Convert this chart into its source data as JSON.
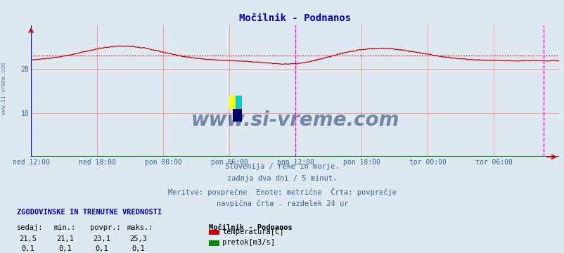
{
  "title": "Močilnik - Podnanos",
  "title_color": "#0000cc",
  "bg_color": "#dde8f0",
  "plot_bg_color": "#dde8f0",
  "grid_color_h": "#ff9999",
  "grid_color_v": "#ff9999",
  "grid_gray": "#c0c0c0",
  "x_axis_color": "#008800",
  "y_axis_color": "#0000ff",
  "temp_line_color": "#cc0000",
  "avg_line_color": "#cc0000",
  "vline_color": "#ff00ff",
  "xlabel_color": "#336699",
  "ylabel_values": [
    10,
    20
  ],
  "ylim": [
    0,
    30
  ],
  "xlim": [
    0,
    575
  ],
  "tick_labels": [
    "ned 12:00",
    "ned 18:00",
    "pon 00:00",
    "pon 06:00",
    "pon 12:00",
    "pon 18:00",
    "tor 00:00",
    "tor 06:00"
  ],
  "tick_positions": [
    0,
    72,
    144,
    216,
    288,
    360,
    432,
    504
  ],
  "vline_positions": [
    288,
    558
  ],
  "avg_value": 23.1,
  "watermark": "www.si-vreme.com",
  "watermark_color": "#1a3a6a",
  "footer_lines": [
    "Slovenija / reke in morje.",
    "zadnja dva dni / 5 minut.",
    "Meritve: povprečne  Enote: metrične  Črta: povprečje",
    "navpična črta - razdelek 24 ur"
  ],
  "footer_color": "#336699",
  "stats_header": "ZGODOVINSKE IN TRENUTNE VREDNOSTI",
  "stats_header_color": "#0000cc",
  "stats_cols": [
    "sedaj:",
    "min.:",
    "povpr.:",
    "maks.:"
  ],
  "stats_temp": [
    "21,5",
    "21,1",
    "23,1",
    "25,3"
  ],
  "stats_flow": [
    "0,1",
    "0,1",
    "0,1",
    "0,1"
  ],
  "legend_title": "Močilnik - Podnanos",
  "legend_items": [
    {
      "label": "temperatura[C]",
      "color": "#cc0000"
    },
    {
      "label": "pretok[m3/s]",
      "color": "#008800"
    }
  ],
  "sidebar_text": "www.si-vreme.com",
  "sidebar_color": "#336699",
  "logo_yellow": "#ffff00",
  "logo_cyan": "#00cccc",
  "logo_blue": "#000066"
}
